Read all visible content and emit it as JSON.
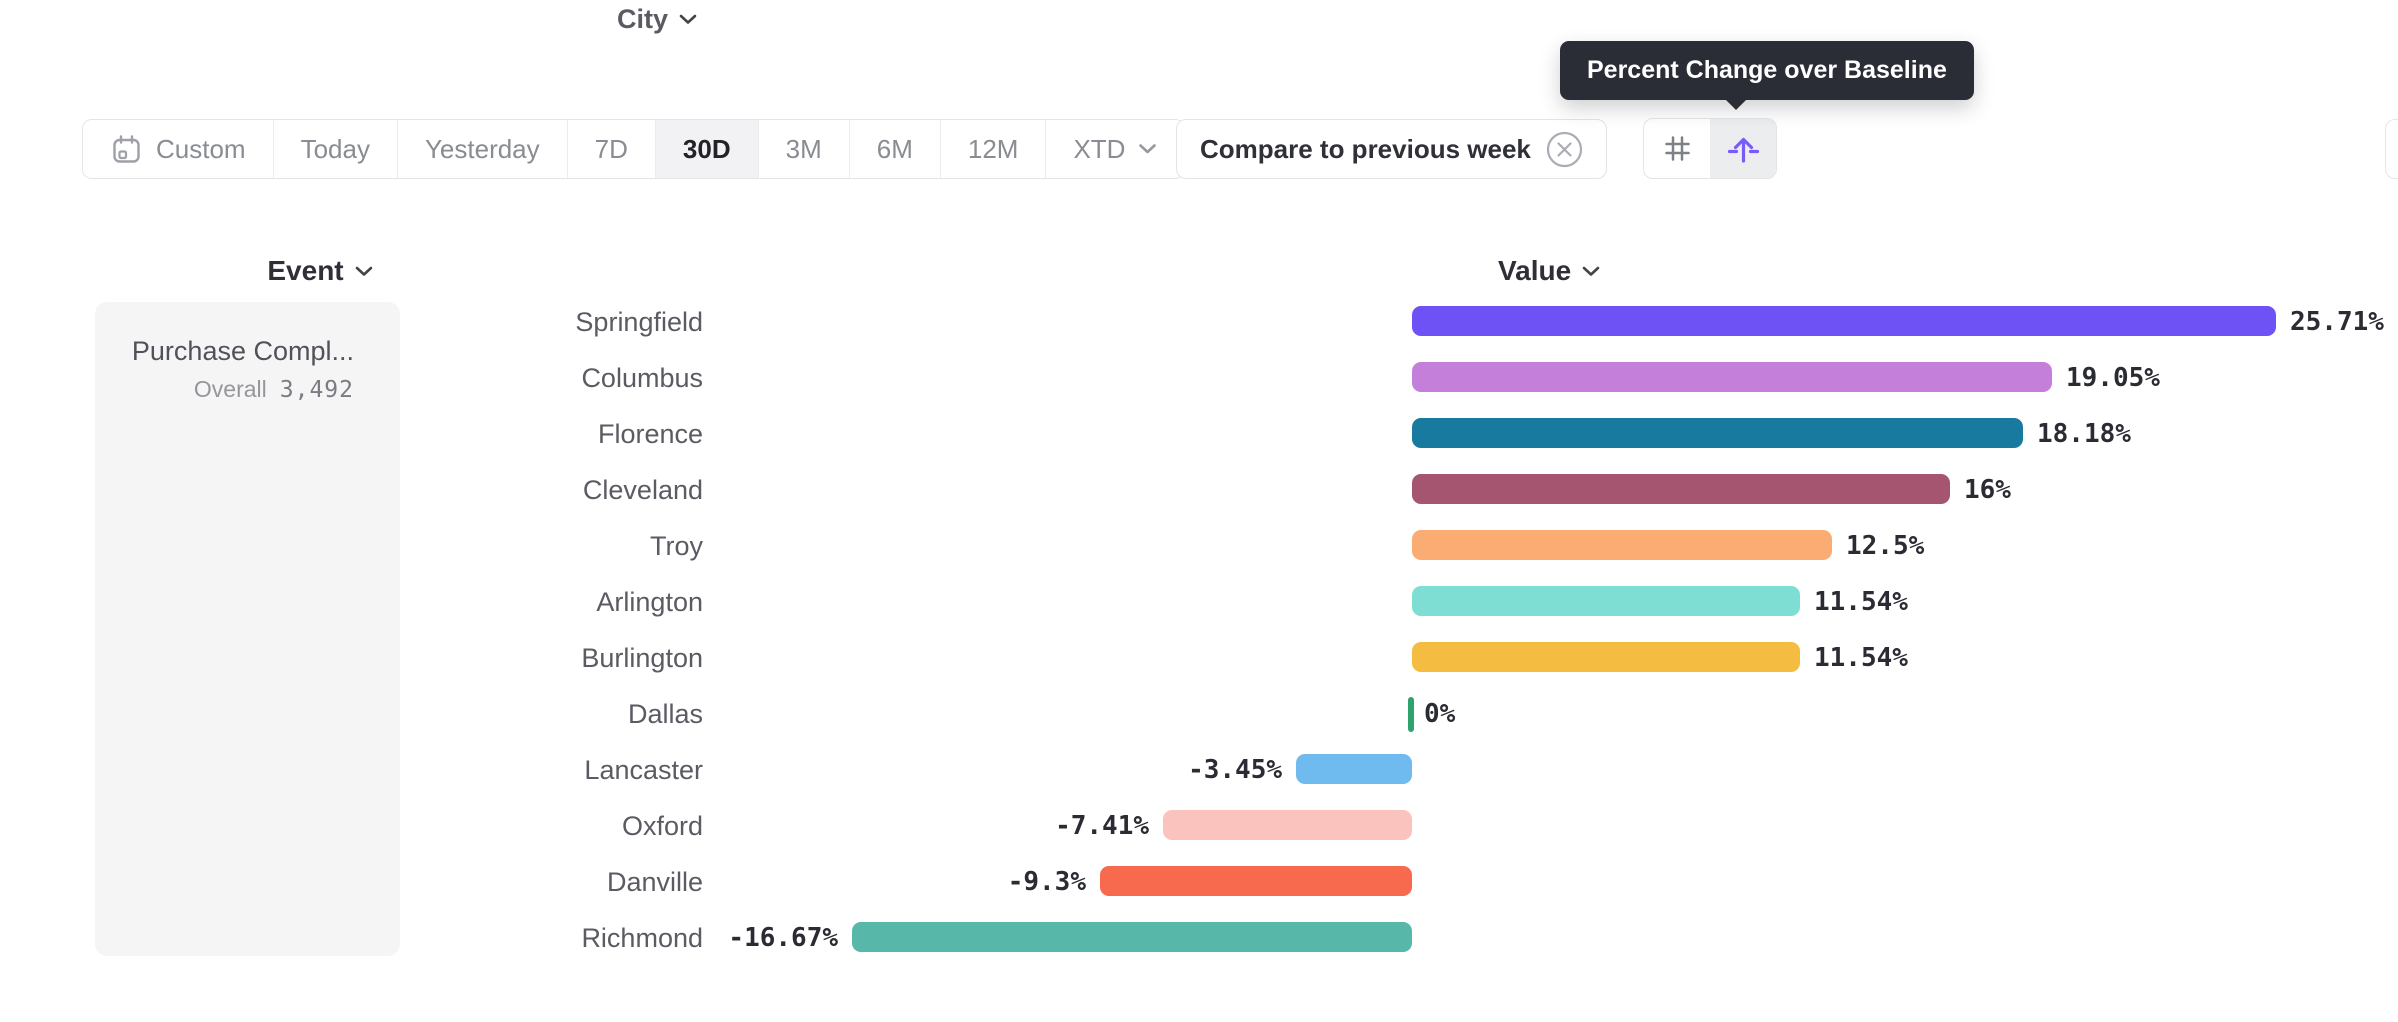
{
  "tooltip": {
    "text": "Percent Change over Baseline"
  },
  "toolbar": {
    "items": [
      {
        "label": "Custom",
        "active": false,
        "icon": "calendar-icon"
      },
      {
        "label": "Today",
        "active": false
      },
      {
        "label": "Yesterday",
        "active": false
      },
      {
        "label": "7D",
        "active": false
      },
      {
        "label": "30D",
        "active": true
      },
      {
        "label": "3M",
        "active": false
      },
      {
        "label": "6M",
        "active": false
      },
      {
        "label": "12M",
        "active": false
      },
      {
        "label": "XTD",
        "active": false,
        "icon": "chevron-down-icon"
      }
    ]
  },
  "comparison_chip": {
    "label": "Compare to previous week",
    "close_icon": "circle-x-icon"
  },
  "view_toggle": {
    "options": [
      {
        "icon": "hash-icon",
        "selected": false
      },
      {
        "icon": "arrow-up-from-line-icon",
        "selected": true,
        "tooltip": "Percent Change over Baseline",
        "accent_color": "#7b5bf7"
      }
    ]
  },
  "columns": {
    "event": "Event",
    "city": "City",
    "value": "Value"
  },
  "event_cell": {
    "name": "Purchase Compl...",
    "overall_label": "Overall",
    "overall_value": "3,492"
  },
  "chart_data": {
    "type": "bar",
    "orientation": "horizontal",
    "title": "Percent Change over Baseline",
    "xlabel": "Value",
    "unit": "%",
    "baseline": 0,
    "grid": false,
    "categories": [
      "Springfield",
      "Columbus",
      "Florence",
      "Cleveland",
      "Troy",
      "Arlington",
      "Burlington",
      "Dallas",
      "Lancaster",
      "Oxford",
      "Danville",
      "Richmond"
    ],
    "values": [
      25.71,
      19.05,
      18.18,
      16,
      12.5,
      11.54,
      11.54,
      0,
      -3.45,
      -7.41,
      -9.3,
      -16.67
    ],
    "labels": [
      "25.71%",
      "19.05%",
      "18.18%",
      "16%",
      "12.5%",
      "11.54%",
      "11.54%",
      "0%",
      "-3.45%",
      "-7.41%",
      "-9.3%",
      "-16.67%"
    ],
    "colors": [
      "#6e52f5",
      "#c47fdb",
      "#177a9e",
      "#a65570",
      "#fbac73",
      "#7eded3",
      "#f4bd41",
      "#2ea36b",
      "#6fbaee",
      "#fbc3bd",
      "#f76a4d",
      "#57b7a8"
    ],
    "xlim": [
      -16.67,
      25.71
    ]
  }
}
